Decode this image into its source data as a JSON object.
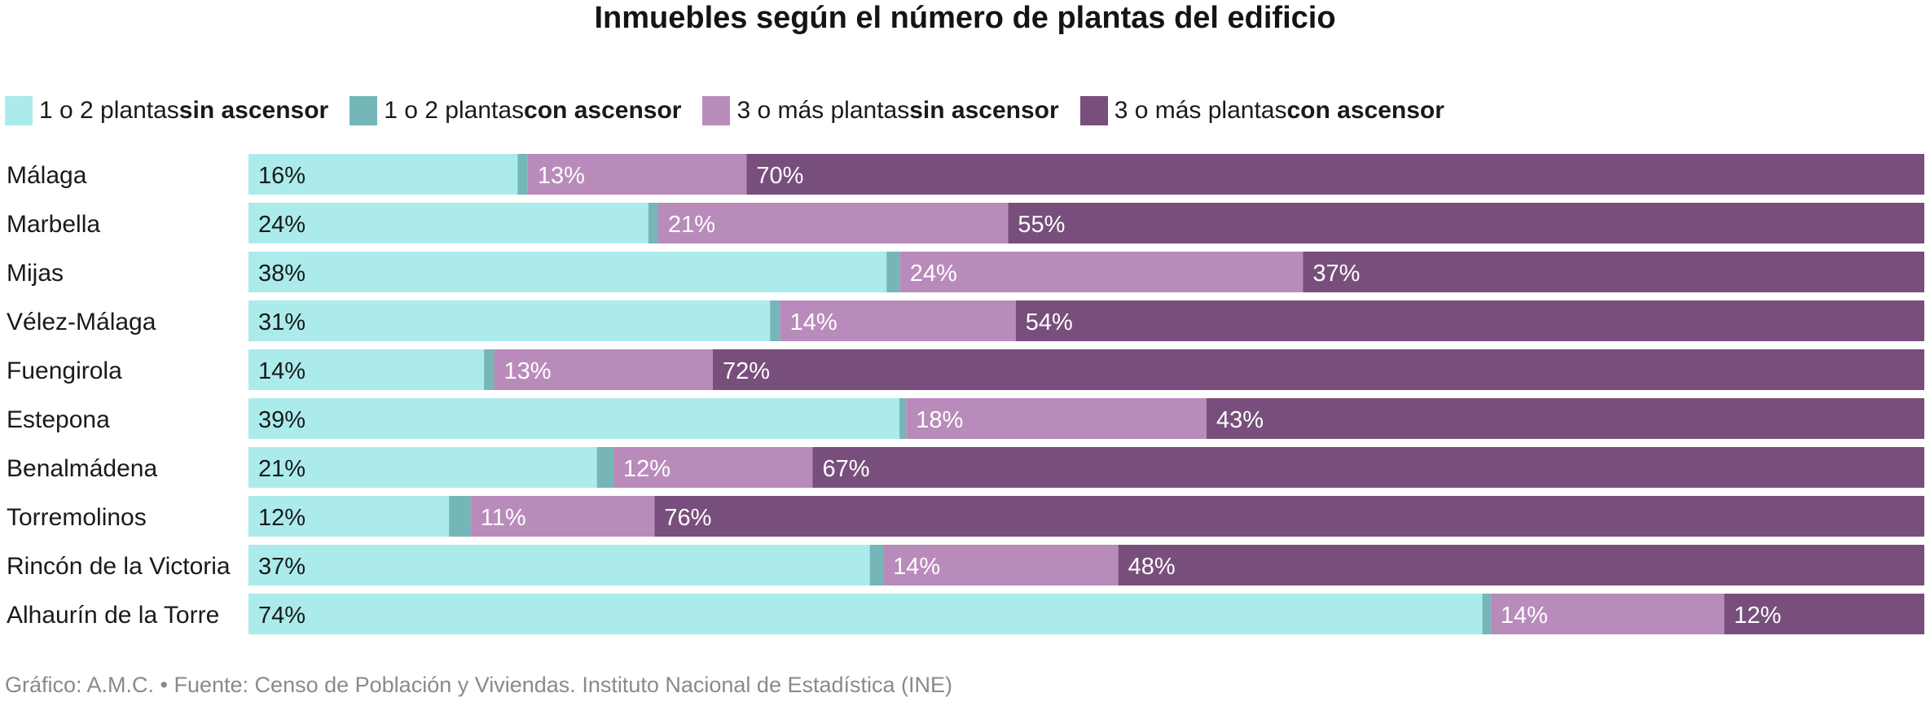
{
  "chart_data": {
    "type": "bar",
    "orientation": "horizontal",
    "stacked": true,
    "title": "Inmuebles según el número de plantas del edificio",
    "categories": [
      "Málaga",
      "Marbella",
      "Mijas",
      "Vélez-Málaga",
      "Fuengirola",
      "Estepona",
      "Benalmádena",
      "Torremolinos",
      "Rincón de la Victoria",
      "Alhaurín de la Torre"
    ],
    "series": [
      {
        "name": "1 o 2 plantas sin ascensor",
        "name_plain": "1 o 2 plantas ",
        "name_bold": "sin ascensor",
        "color": "#abebec",
        "label_color": "#1a1a1a",
        "values": [
          16,
          24,
          38,
          31,
          14,
          39,
          21,
          12,
          37,
          74
        ],
        "labels": [
          "16%",
          "24%",
          "38%",
          "31%",
          "14%",
          "39%",
          "21%",
          "12%",
          "37%",
          "74%"
        ]
      },
      {
        "name": "1 o 2 plantas con ascensor",
        "name_plain": "1 o 2 plantas ",
        "name_bold": "con ascensor",
        "color": "#75b6b8",
        "label_color": "#ffffff",
        "values": [
          0.6,
          0.6,
          0.8,
          0.6,
          0.6,
          0.4,
          1.0,
          1.3,
          0.8,
          0.5
        ],
        "labels": [
          "",
          "",
          "",
          "",
          "",
          "",
          "",
          "",
          "",
          ""
        ]
      },
      {
        "name": "3 o más plantas sin ascensor",
        "name_plain": "3 o más plantas ",
        "name_bold": "sin ascensor",
        "color": "#b98bbb",
        "label_color": "#ffffff",
        "values": [
          13,
          21,
          24,
          14,
          13,
          18,
          12,
          11,
          14,
          14
        ],
        "labels": [
          "13%",
          "21%",
          "24%",
          "14%",
          "13%",
          "18%",
          "12%",
          "11%",
          "14%",
          "14%"
        ]
      },
      {
        "name": "3 o más plantas con ascensor",
        "name_plain": "3 o más plantas ",
        "name_bold": "con ascensor",
        "color": "#784f7c",
        "label_color": "#ffffff",
        "values": [
          70,
          55,
          37,
          54,
          72,
          43,
          67,
          76,
          48,
          12
        ],
        "labels": [
          "70%",
          "55%",
          "37%",
          "54%",
          "72%",
          "43%",
          "67%",
          "76%",
          "48%",
          "12%"
        ]
      }
    ],
    "xlim": [
      0,
      100
    ],
    "xlabel": "",
    "ylabel": "",
    "grid": false,
    "legend": "top-left",
    "footer": "Gráfico: A.M.C. • Fuente: Censo de Población y Viviendas. Instituto Nacional de Estadística (INE)"
  }
}
